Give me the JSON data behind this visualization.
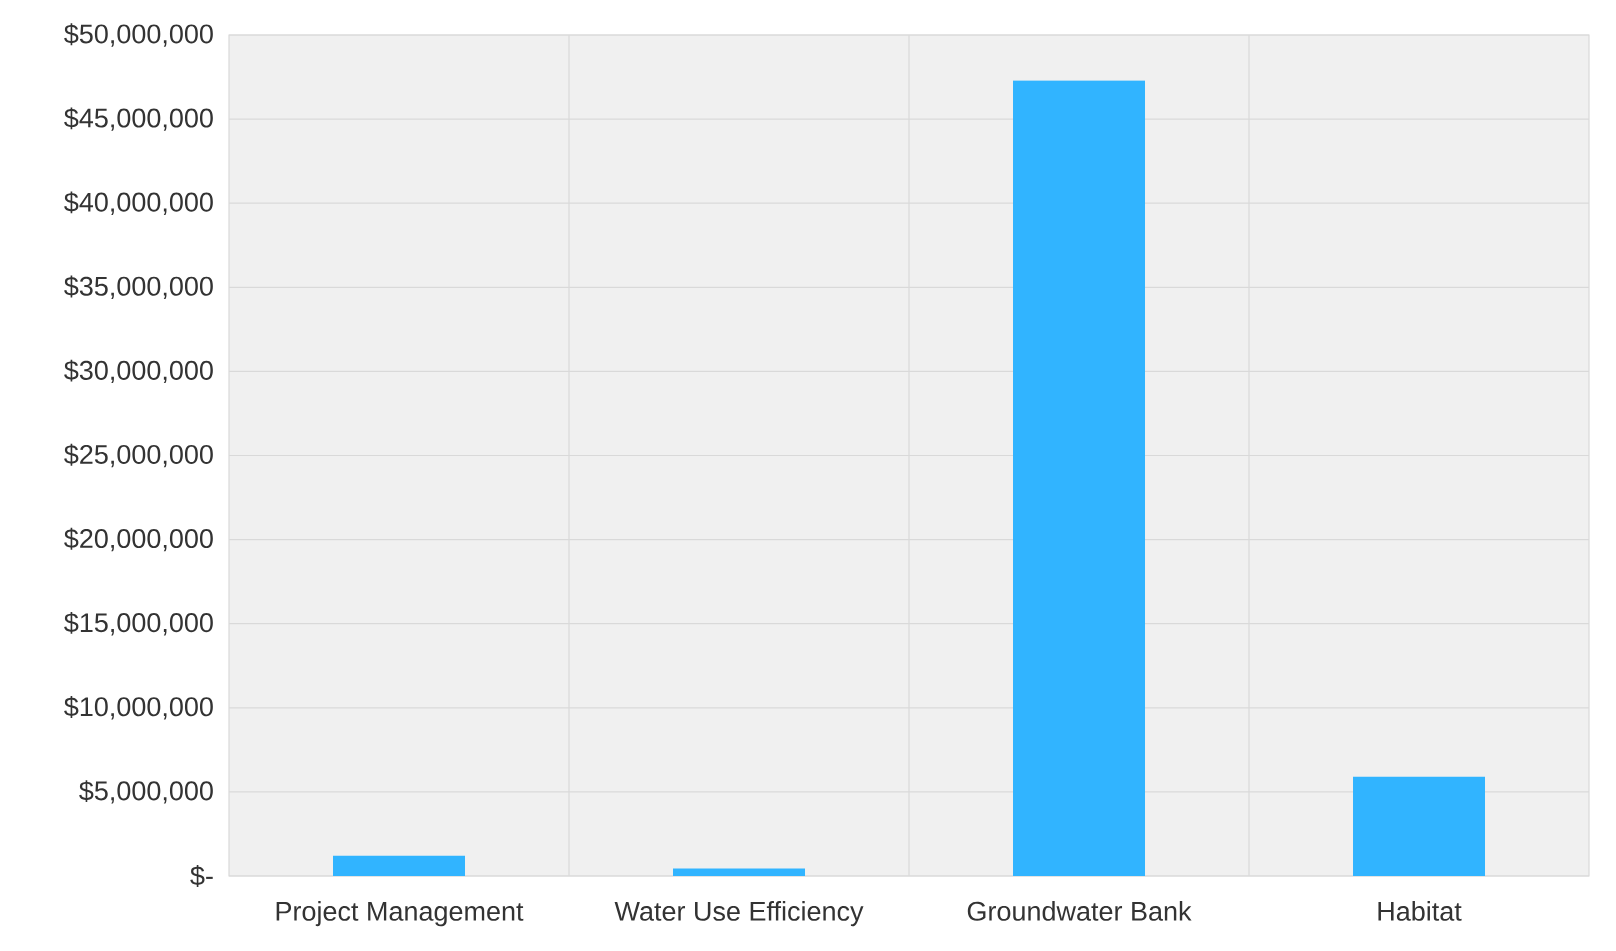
{
  "chart_data": {
    "type": "bar",
    "categories": [
      "Project Management",
      "Water Use Efficiency",
      "Groundwater Bank",
      "Habitat"
    ],
    "values": [
      1200000,
      450000,
      47300000,
      5900000
    ],
    "color": "#31b4ff",
    "ylim": [
      0,
      50000000
    ],
    "yticks": [
      {
        "value": 0,
        "label": "$-"
      },
      {
        "value": 5000000,
        "label": "$5,000,000"
      },
      {
        "value": 10000000,
        "label": "$10,000,000"
      },
      {
        "value": 15000000,
        "label": "$15,000,000"
      },
      {
        "value": 20000000,
        "label": "$20,000,000"
      },
      {
        "value": 25000000,
        "label": "$25,000,000"
      },
      {
        "value": 30000000,
        "label": "$30,000,000"
      },
      {
        "value": 35000000,
        "label": "$35,000,000"
      },
      {
        "value": 40000000,
        "label": "$40,000,000"
      },
      {
        "value": 45000000,
        "label": "$45,000,000"
      },
      {
        "value": 50000000,
        "label": "$50,000,000"
      }
    ],
    "grid": true
  }
}
